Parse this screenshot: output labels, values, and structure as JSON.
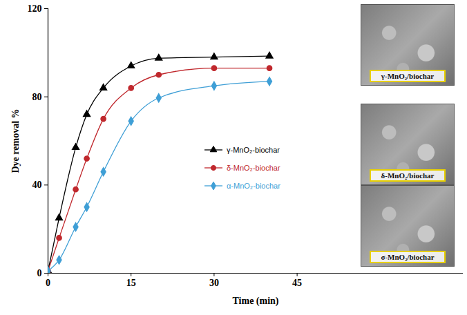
{
  "chart_data": {
    "type": "line",
    "xlabel": "Time (min)",
    "ylabel": "Dye removal %",
    "x": [
      0,
      2,
      5,
      7,
      10,
      15,
      20,
      30,
      40
    ],
    "series": [
      {
        "name": "γ-MnO₂-biochar",
        "color": "#000000",
        "marker": "triangle",
        "values": [
          1,
          25,
          57,
          72,
          84,
          94,
          97.5,
          98,
          98.5
        ]
      },
      {
        "name": "δ-MnO₂-biochar",
        "color": "#c0282d",
        "marker": "circle",
        "values": [
          1,
          16,
          38,
          52,
          70,
          84,
          90,
          93,
          93
        ]
      },
      {
        "name": "α-MnO₂-biochar",
        "color": "#3f9fd6",
        "marker": "diamond",
        "values": [
          1,
          6,
          21,
          30,
          46,
          69,
          79.5,
          85,
          87
        ]
      }
    ],
    "xlim": [
      0,
      75
    ],
    "xticks": [
      0,
      15,
      30,
      45
    ],
    "ylim": [
      0,
      120
    ],
    "yticks": [
      0,
      40,
      80,
      120
    ],
    "grid": false,
    "legend": "center",
    "annotations": [
      "γ-MnO₂/biochar",
      "δ-MnO₂/biochar",
      "σ-MnO₂/biochar"
    ]
  }
}
